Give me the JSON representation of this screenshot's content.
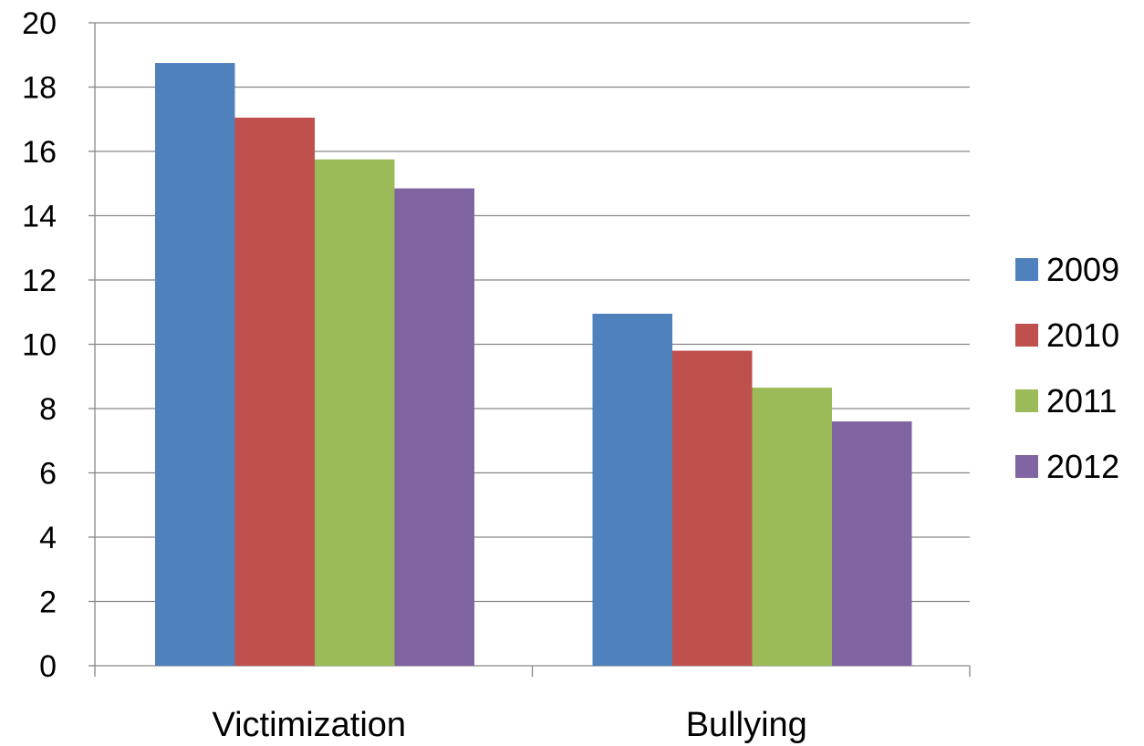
{
  "chart_data": {
    "type": "bar",
    "title": "",
    "xlabel": "",
    "ylabel": "",
    "categories": [
      "Victimization",
      "Bullying"
    ],
    "series": [
      {
        "name": "2009",
        "color": "#4F81BD",
        "values": [
          18.75,
          10.95
        ]
      },
      {
        "name": "2010",
        "color": "#C0504D",
        "values": [
          17.05,
          9.8
        ]
      },
      {
        "name": "2011",
        "color": "#9BBB59",
        "values": [
          15.75,
          8.65
        ]
      },
      {
        "name": "2012",
        "color": "#8064A2",
        "values": [
          14.85,
          7.6
        ]
      }
    ],
    "ylim": [
      0,
      20
    ],
    "yticks": [
      0,
      2,
      4,
      6,
      8,
      10,
      12,
      14,
      16,
      18,
      20
    ],
    "grid": true,
    "legend_position": "right"
  }
}
